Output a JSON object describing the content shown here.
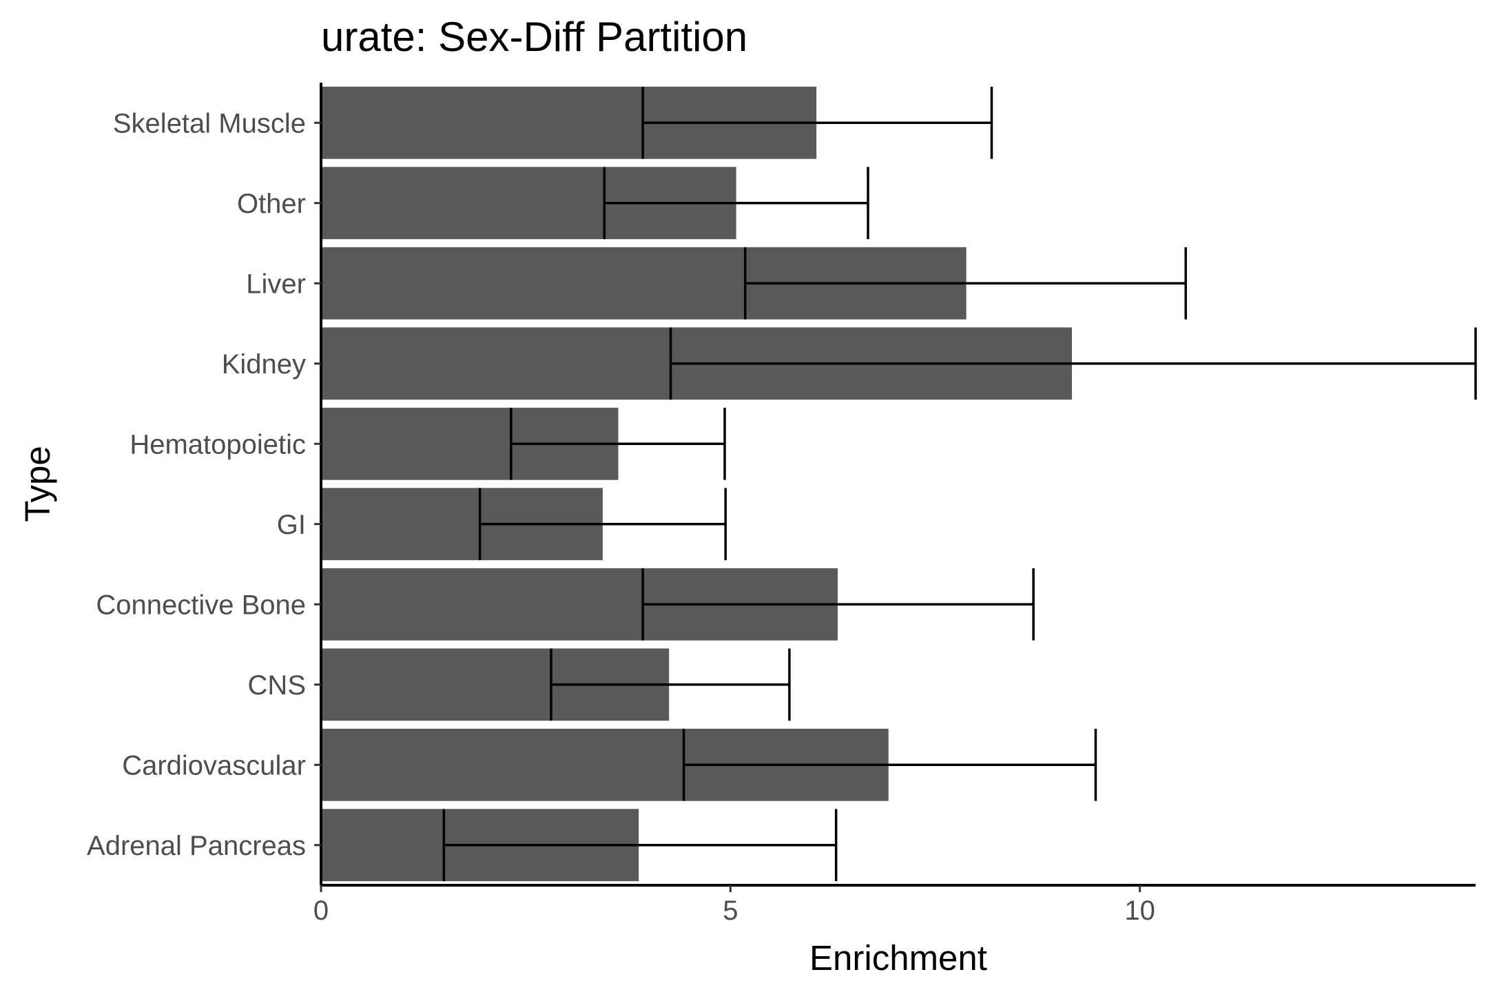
{
  "chart_data": {
    "type": "bar",
    "orientation": "horizontal",
    "title": "urate: Sex-Diff Partition",
    "xlabel": "Enrichment",
    "ylabel": "Type",
    "xlim": [
      0,
      14.1
    ],
    "xticks": [
      0,
      5,
      10
    ],
    "grid": false,
    "legend": "none",
    "bar_color": "#595959",
    "categories": [
      "Skeletal Muscle",
      "Other",
      "Liver",
      "Kidney",
      "Hematopoietic",
      "GI",
      "Connective Bone",
      "CNS",
      "Cardiovascular",
      "Adrenal Pancreas"
    ],
    "values": [
      6.05,
      5.07,
      7.88,
      9.17,
      3.63,
      3.44,
      6.31,
      4.25,
      6.93,
      3.88
    ],
    "error_low": [
      3.93,
      3.46,
      5.18,
      4.27,
      2.32,
      1.94,
      3.93,
      2.81,
      4.43,
      1.5
    ],
    "error_high": [
      8.19,
      6.68,
      10.56,
      14.1,
      4.93,
      4.94,
      8.7,
      5.72,
      9.46,
      6.29
    ]
  }
}
